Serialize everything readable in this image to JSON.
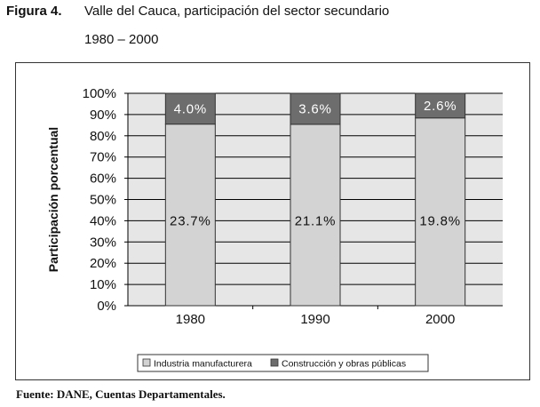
{
  "figure": {
    "label": "Figura 4.",
    "title": "Valle del Cauca, participación del sector secundario",
    "years": "1980 – 2000"
  },
  "source": "Fuente: DANE, Cuentas Departamentales.",
  "colors": {
    "plot_background": "#e6e6e6",
    "industria": "#d3d3d3",
    "construccion": "#6d6d6d",
    "gridline": "#000000"
  },
  "chart_data": {
    "type": "bar",
    "stacked": true,
    "categories": [
      "1980",
      "1990",
      "2000"
    ],
    "ylabel": "Participación porcentual",
    "xlabel": "",
    "ylim": [
      0,
      100
    ],
    "y_ticks": [
      "0%",
      "10%",
      "20%",
      "30%",
      "40%",
      "50%",
      "60%",
      "70%",
      "80%",
      "90%",
      "100%"
    ],
    "grid": true,
    "legend_position": "bottom",
    "series": [
      {
        "name": "Industria manufacturera",
        "values": [
          85.5,
          85.4,
          88.4
        ],
        "labels": [
          "23.7%",
          "21.1%",
          "19.8%"
        ]
      },
      {
        "name": "Construcción y obras públicas",
        "values": [
          14.5,
          14.6,
          11.6
        ],
        "labels": [
          "4.0%",
          "3.6%",
          "2.6%"
        ]
      }
    ]
  }
}
